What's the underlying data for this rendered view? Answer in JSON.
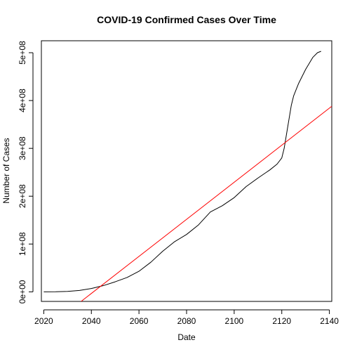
{
  "chart_data": {
    "type": "line",
    "title": "COVID-19 Confirmed Cases Over Time",
    "xlabel": "Date",
    "ylabel": "Number of Cases",
    "xlim": [
      2019,
      2141
    ],
    "ylim": [
      -20000000,
      525000000
    ],
    "x_ticks": [
      2020,
      2040,
      2060,
      2080,
      2100,
      2120,
      2140
    ],
    "x_tick_labels": [
      "2020",
      "2040",
      "2060",
      "2080",
      "2100",
      "2120",
      "2140"
    ],
    "y_ticks": [
      0,
      100000000,
      200000000,
      300000000,
      400000000,
      500000000
    ],
    "y_tick_labels": [
      "0e+00",
      "1e+08",
      "2e+08",
      "3e+08",
      "4e+08",
      "5e+08"
    ],
    "grid": false,
    "series": [
      {
        "color": "#000000",
        "x": [
          2020,
          2025,
          2030,
          2035,
          2040,
          2045,
          2050,
          2055,
          2060,
          2065,
          2070,
          2075,
          2080,
          2085,
          2090,
          2095,
          2100,
          2105,
          2110,
          2115,
          2118,
          2120,
          2121,
          2122,
          2123,
          2124,
          2125,
          2127,
          2130,
          2133,
          2135,
          2136.5
        ],
        "y": [
          0,
          200000,
          1000000,
          3000000,
          7000000,
          13000000,
          21000000,
          30000000,
          43000000,
          62000000,
          85000000,
          105000000,
          120000000,
          140000000,
          167000000,
          180000000,
          197000000,
          220000000,
          238000000,
          255000000,
          267000000,
          280000000,
          300000000,
          330000000,
          360000000,
          390000000,
          410000000,
          435000000,
          465000000,
          490000000,
          500000000,
          503000000
        ]
      },
      {
        "color": "#ff0000",
        "x": [
          2035.7,
          2141
        ],
        "y": [
          -20000000,
          388000000
        ]
      }
    ]
  }
}
